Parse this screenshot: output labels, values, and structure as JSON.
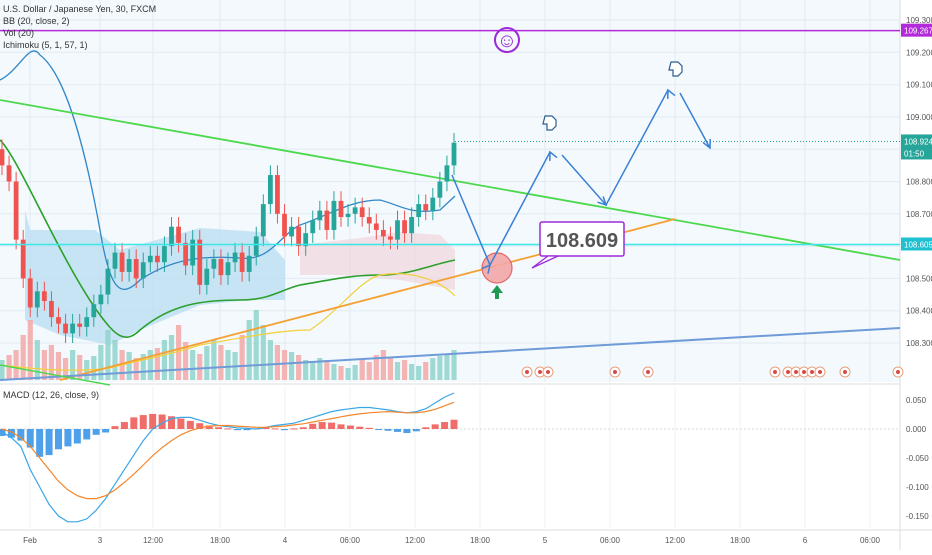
{
  "legend": {
    "symbol": "U.S. Dollar / Japanese Yen, 30, FXCM",
    "bb": "BB (20, close, 2)",
    "vol": "Vol (20)",
    "ichimoku": "Ichimoku (5, 1, 57, 1)",
    "macd": "MACD (12, 26, close, 9)"
  },
  "price_axis": {
    "ticks": [
      "109.300",
      "109.200",
      "109.100",
      "109.000",
      "108.900",
      "108.800",
      "108.700",
      "108.600",
      "108.500",
      "108.400",
      "108.300"
    ],
    "tick_values": [
      109.3,
      109.2,
      109.1,
      109.0,
      108.9,
      108.8,
      108.7,
      108.6,
      108.5,
      108.4,
      108.3
    ],
    "badges": {
      "top_label": "109.267",
      "current_price": "108.924",
      "countdown": "01:50",
      "cyan_level": "108.605"
    }
  },
  "macd_axis": {
    "ticks": [
      "0.050",
      "0.000",
      "-0.050",
      "-0.100",
      "-0.150"
    ],
    "tick_values": [
      0.05,
      0.0,
      -0.05,
      -0.1,
      -0.15
    ]
  },
  "time_axis": [
    "Feb",
    "3",
    "12:00",
    "18:00",
    "4",
    "06:00",
    "12:00",
    "18:00",
    "5",
    "06:00",
    "12:00",
    "18:00",
    "6",
    "06:00"
  ],
  "annotation": {
    "callout": "108.609",
    "smiley": "☺"
  },
  "colors": {
    "green_trend": "#4cd84c",
    "orange_trend": "#f5a032",
    "blue_trend": "#6f9bd8",
    "purple_level": "#b32bd9",
    "cyan_level": "#39e7e7",
    "arrow_blue": "#3a80d4",
    "bb_band": "#2f87c8",
    "bb_basis": "#2ba02b",
    "candle_up": "#26a69a",
    "candle_down": "#ef5350",
    "cloud": "#b8dcf2",
    "macd_line": "#39a6e6",
    "signal_line": "#f4862b"
  },
  "chart_data": {
    "type": "candlestick",
    "title": "U.S. Dollar / Japanese Yen, 30, FXCM",
    "y_range": [
      108.28,
      109.33
    ],
    "price_levels": {
      "purple_horizontal": 109.267,
      "cyan_horizontal": 108.605,
      "last_price": 108.924,
      "callout_price": 108.609
    },
    "close_series": [
      108.85,
      108.8,
      108.62,
      108.5,
      108.41,
      108.46,
      108.43,
      108.38,
      108.36,
      108.33,
      108.36,
      108.35,
      108.38,
      108.42,
      108.45,
      108.53,
      108.58,
      108.52,
      108.56,
      108.5,
      108.55,
      108.57,
      108.55,
      108.6,
      108.66,
      108.61,
      108.54,
      108.62,
      108.48,
      108.53,
      108.56,
      108.51,
      108.55,
      108.58,
      108.52,
      108.57,
      108.63,
      108.73,
      108.82,
      108.7,
      108.63,
      108.66,
      108.6,
      108.64,
      108.68,
      108.71,
      108.65,
      108.74,
      108.69,
      108.7,
      108.72,
      108.69,
      108.67,
      108.65,
      108.63,
      108.62,
      108.68,
      108.64,
      108.69,
      108.73,
      108.71,
      108.75,
      108.8,
      108.85,
      108.92
    ],
    "macd": {
      "y_range": [
        -0.17,
        0.07
      ],
      "macd_line": [
        -0.005,
        -0.015,
        -0.03,
        -0.07,
        -0.1,
        -0.13,
        -0.15,
        -0.16,
        -0.16,
        -0.155,
        -0.14,
        -0.12,
        -0.095,
        -0.07,
        -0.045,
        -0.02,
        0.0,
        0.01,
        0.018,
        0.02,
        0.02,
        0.015,
        0.01,
        0.006,
        0.004,
        0.002,
        0.001,
        0.0,
        0.003,
        0.006,
        0.008,
        0.01,
        0.015,
        0.02,
        0.025,
        0.03,
        0.033,
        0.035,
        0.037,
        0.037,
        0.035,
        0.033,
        0.03,
        0.028,
        0.03,
        0.035,
        0.045,
        0.055,
        0.062
      ],
      "signal_line": [
        0.0,
        -0.005,
        -0.015,
        -0.03,
        -0.05,
        -0.07,
        -0.09,
        -0.105,
        -0.115,
        -0.12,
        -0.12,
        -0.115,
        -0.105,
        -0.092,
        -0.078,
        -0.062,
        -0.046,
        -0.032,
        -0.02,
        -0.01,
        -0.003,
        0.002,
        0.005,
        0.006,
        0.006,
        0.005,
        0.004,
        0.003,
        0.003,
        0.004,
        0.005,
        0.007,
        0.009,
        0.012,
        0.015,
        0.018,
        0.021,
        0.024,
        0.026,
        0.028,
        0.029,
        0.03,
        0.029,
        0.028,
        0.028,
        0.03,
        0.034,
        0.04,
        0.046
      ],
      "histogram": [
        -0.012,
        -0.015,
        -0.02,
        -0.032,
        -0.048,
        -0.045,
        -0.035,
        -0.03,
        -0.025,
        -0.018,
        -0.01,
        -0.006,
        0.005,
        0.012,
        0.02,
        0.024,
        0.026,
        0.025,
        0.022,
        0.018,
        0.014,
        0.01,
        0.006,
        0.003,
        0.001,
        -0.002,
        -0.002,
        0.001,
        0.003,
        0.001,
        -0.002,
        0.001,
        0.003,
        0.009,
        0.012,
        0.011,
        0.008,
        0.006,
        0.004,
        0.002,
        -0.001,
        -0.003,
        -0.005,
        -0.007,
        -0.004,
        0.003,
        0.008,
        0.012,
        0.016
      ]
    }
  }
}
